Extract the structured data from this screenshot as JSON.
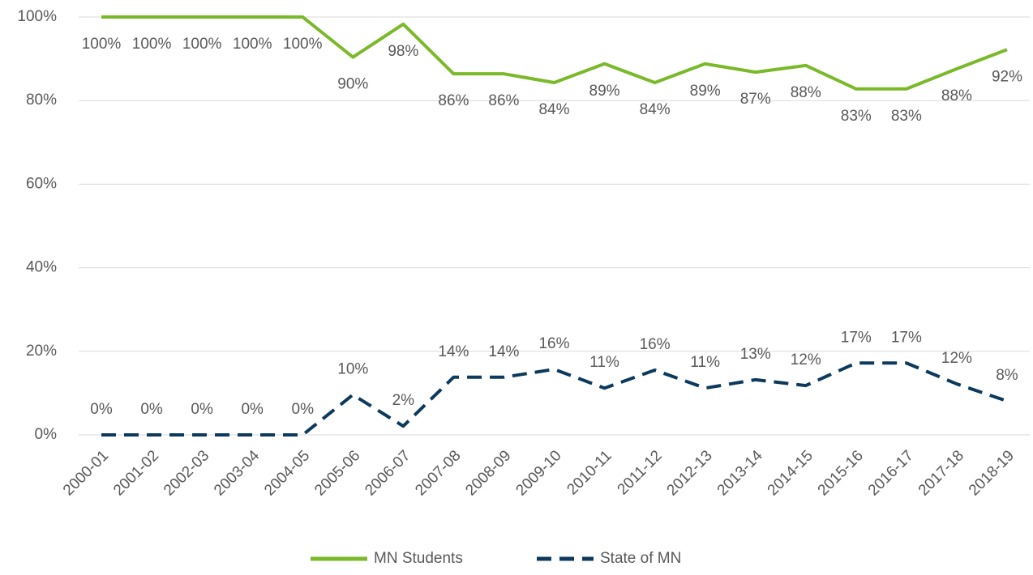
{
  "chart_data": {
    "type": "line",
    "categories": [
      "2000-01",
      "2001-02",
      "2002-03",
      "2003-04",
      "2004-05",
      "2005-06",
      "2006-07",
      "2007-08",
      "2008-09",
      "2009-10",
      "2010-11",
      "2011-12",
      "2012-13",
      "2013-14",
      "2014-15",
      "2015-16",
      "2016-17",
      "2017-18",
      "2018-19"
    ],
    "series": [
      {
        "name": "MN Students",
        "color": "#7ab929",
        "dash": false,
        "values": [
          100,
          100,
          100,
          100,
          100,
          90.4,
          98.3,
          86.4,
          86.4,
          84.3,
          88.8,
          84.3,
          88.8,
          86.8,
          88.4,
          82.8,
          82.8,
          87.6,
          92.2
        ],
        "value_labels": [
          "100%",
          "100%",
          "100%",
          "100%",
          "100%",
          "90%",
          "98%",
          "86%",
          "86%",
          "84%",
          "89%",
          "84%",
          "89%",
          "87%",
          "88%",
          "83%",
          "83%",
          "88%",
          "92%"
        ]
      },
      {
        "name": "State of MN",
        "color": "#0d3a5c",
        "dash": true,
        "values": [
          0,
          0,
          0,
          0,
          0,
          9.6,
          2.1,
          13.8,
          13.8,
          15.7,
          11.2,
          15.5,
          11.2,
          13.2,
          11.8,
          17.2,
          17.2,
          12.2,
          8.1
        ],
        "value_labels": [
          "0%",
          "0%",
          "0%",
          "0%",
          "0%",
          "10%",
          "2%",
          "14%",
          "14%",
          "16%",
          "11%",
          "16%",
          "11%",
          "13%",
          "12%",
          "17%",
          "17%",
          "12%",
          "8%"
        ]
      }
    ],
    "ylim": [
      0,
      100
    ],
    "yticks": [
      {
        "value": 0,
        "label": "0%"
      },
      {
        "value": 20,
        "label": "20%"
      },
      {
        "value": 40,
        "label": "40%"
      },
      {
        "value": 60,
        "label": "60%"
      },
      {
        "value": 80,
        "label": "80%"
      },
      {
        "value": 100,
        "label": "100%"
      }
    ],
    "grid": true,
    "legend": "bottom"
  }
}
